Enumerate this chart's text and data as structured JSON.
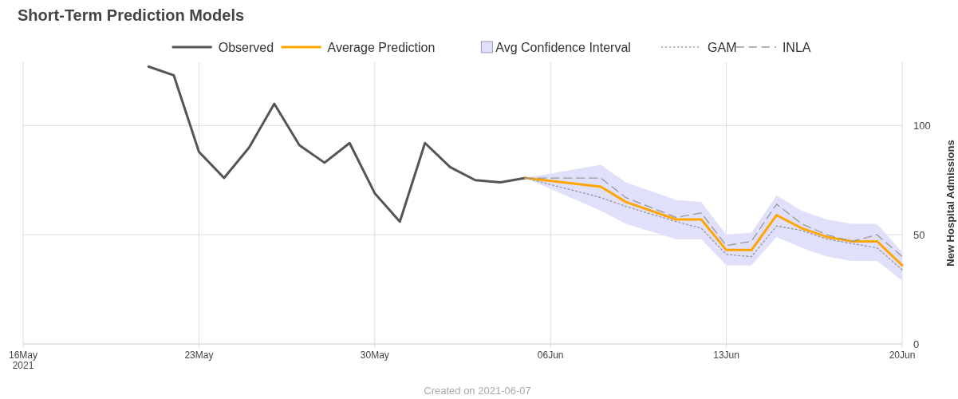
{
  "chart_data": {
    "type": "line",
    "title": "Short-Term Prediction Models",
    "ylabel": "New Hospital Admissions",
    "xlim": [
      "2021-05-16",
      "2021-06-20"
    ],
    "xticks": [
      {
        "value": "2021-05-16",
        "label": "16May\n2021"
      },
      {
        "value": "2021-05-23",
        "label": "23May"
      },
      {
        "value": "2021-05-30",
        "label": "30May"
      },
      {
        "value": "2021-06-06",
        "label": "06Jun"
      },
      {
        "value": "2021-06-13",
        "label": "13Jun"
      },
      {
        "value": "2021-06-20",
        "label": "20Jun"
      }
    ],
    "ylim": [
      0,
      129
    ],
    "yticks": [
      0,
      50,
      100
    ],
    "grid": true,
    "legend": "top",
    "series": [
      {
        "name": "Observed",
        "color": "#555555",
        "line_style": "solid",
        "x": [
          "2021-05-21",
          "2021-05-22",
          "2021-05-23",
          "2021-05-24",
          "2021-05-25",
          "2021-05-26",
          "2021-05-27",
          "2021-05-28",
          "2021-05-29",
          "2021-05-30",
          "2021-05-31",
          "2021-06-01",
          "2021-06-02",
          "2021-06-03",
          "2021-06-04",
          "2021-06-05"
        ],
        "values": [
          127,
          123,
          88,
          76,
          90,
          110,
          91,
          83,
          92,
          69,
          56,
          92,
          81,
          75,
          74,
          76
        ]
      },
      {
        "name": "Average Prediction",
        "color": "#ffa500",
        "line_style": "solid",
        "x": [
          "2021-06-05",
          "2021-06-08",
          "2021-06-09",
          "2021-06-11",
          "2021-06-12",
          "2021-06-13",
          "2021-06-14",
          "2021-06-15",
          "2021-06-16",
          "2021-06-17",
          "2021-06-18",
          "2021-06-19",
          "2021-06-20"
        ],
        "values": [
          76,
          72,
          65,
          57,
          57,
          43,
          43,
          59,
          53,
          49,
          47,
          47,
          36
        ],
        "lower": [
          76,
          61,
          55,
          48,
          48,
          36,
          36,
          49,
          44,
          40,
          38,
          38,
          29
        ],
        "upper": [
          76,
          82,
          74,
          66,
          65,
          50,
          51,
          68,
          61,
          57,
          55,
          55,
          42
        ]
      },
      {
        "name": "Avg Confidence Interval",
        "type": "area",
        "color": "#e0e0fa"
      },
      {
        "name": "GAM",
        "color": "#999999",
        "line_style": "dotted",
        "x": [
          "2021-06-05",
          "2021-06-08",
          "2021-06-09",
          "2021-06-11",
          "2021-06-12",
          "2021-06-13",
          "2021-06-14",
          "2021-06-15",
          "2021-06-16",
          "2021-06-17",
          "2021-06-18",
          "2021-06-19",
          "2021-06-20"
        ],
        "values": [
          76,
          67,
          63,
          56,
          53,
          41,
          40,
          54,
          52,
          48,
          46,
          44,
          34
        ]
      },
      {
        "name": "INLA",
        "color": "#999999",
        "line_style": "dashed",
        "x": [
          "2021-06-05",
          "2021-06-08",
          "2021-06-09",
          "2021-06-11",
          "2021-06-12",
          "2021-06-13",
          "2021-06-14",
          "2021-06-15",
          "2021-06-16",
          "2021-06-17",
          "2021-06-18",
          "2021-06-19",
          "2021-06-20"
        ],
        "values": [
          76,
          76,
          67,
          58,
          60,
          45,
          47,
          64,
          55,
          50,
          47,
          50,
          40
        ]
      }
    ],
    "annotations": [
      "Created on 2021-06-07"
    ]
  }
}
